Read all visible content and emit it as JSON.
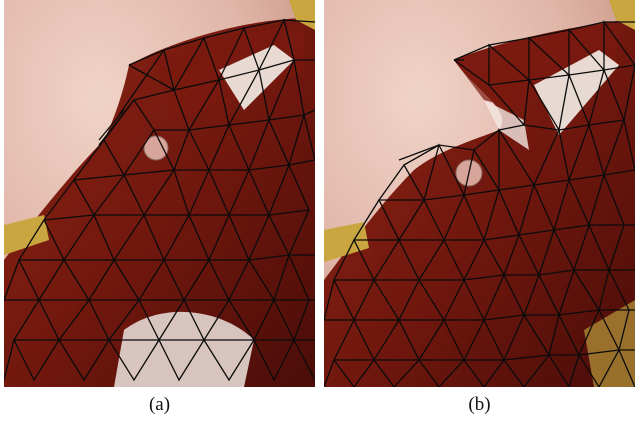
{
  "panels": [
    {
      "id": "a",
      "caption": "(a)"
    },
    {
      "id": "b",
      "caption": "(b)"
    }
  ],
  "colors": {
    "skin": "#e6c3b6",
    "tissue_dark": "#6e160e",
    "tissue_mid": "#9a2a18",
    "tissue_light": "#b8402a",
    "specular": "#f5f0ea",
    "mesh_line": "#0b0b0b",
    "instrument": "#c9a640"
  },
  "icons": [
    "surgical-instrument",
    "tissue-marker"
  ]
}
